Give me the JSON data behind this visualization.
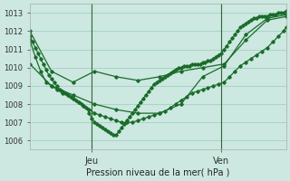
{
  "xlabel": "Pression niveau de la mer( hPa )",
  "bg_color": "#cce8e0",
  "grid_color": "#99ccbb",
  "line_color": "#1a6b2a",
  "ylim": [
    1005.5,
    1013.5
  ],
  "yticks": [
    1006,
    1007,
    1008,
    1009,
    1010,
    1011,
    1012,
    1013
  ],
  "xlim": [
    0,
    95
  ],
  "jeu_x": 23,
  "ven_x": 71,
  "line1_x": [
    0,
    1,
    2,
    3,
    4,
    5,
    6,
    7,
    8,
    9,
    10,
    11,
    12,
    13,
    14,
    15,
    16,
    17,
    18,
    19,
    20,
    21,
    22,
    23,
    24,
    25,
    26,
    27,
    28,
    29,
    30,
    31,
    32,
    33,
    34,
    35,
    36,
    37,
    38,
    39,
    40,
    41,
    42,
    43,
    44,
    45,
    46,
    47,
    48,
    49,
    50,
    51,
    52,
    53,
    54,
    55,
    56,
    57,
    58,
    59,
    60,
    61,
    62,
    63,
    64,
    65,
    66,
    67,
    68,
    69,
    70,
    71,
    72,
    73,
    74,
    75,
    76,
    77,
    78,
    79,
    80,
    81,
    82,
    83,
    84,
    85,
    86,
    87,
    88,
    89,
    90,
    91,
    92,
    93,
    94,
    95
  ],
  "line1_y": [
    1011.7,
    1011.4,
    1011.1,
    1010.8,
    1010.5,
    1010.2,
    1009.9,
    1009.6,
    1009.4,
    1009.2,
    1009.0,
    1008.8,
    1008.7,
    1008.6,
    1008.5,
    1008.4,
    1008.3,
    1008.2,
    1008.1,
    1008.0,
    1007.9,
    1007.8,
    1007.5,
    1007.2,
    1007.0,
    1006.9,
    1006.8,
    1006.7,
    1006.6,
    1006.5,
    1006.4,
    1006.3,
    1006.3,
    1006.5,
    1006.7,
    1006.9,
    1007.1,
    1007.3,
    1007.5,
    1007.7,
    1007.9,
    1008.1,
    1008.3,
    1008.5,
    1008.7,
    1008.9,
    1009.1,
    1009.2,
    1009.3,
    1009.4,
    1009.5,
    1009.6,
    1009.7,
    1009.8,
    1009.9,
    1010.0,
    1010.0,
    1010.1,
    1010.1,
    1010.1,
    1010.2,
    1010.2,
    1010.2,
    1010.2,
    1010.3,
    1010.3,
    1010.4,
    1010.4,
    1010.5,
    1010.6,
    1010.7,
    1010.8,
    1011.0,
    1011.2,
    1011.4,
    1011.6,
    1011.8,
    1012.0,
    1012.2,
    1012.3,
    1012.4,
    1012.5,
    1012.6,
    1012.7,
    1012.7,
    1012.8,
    1012.8,
    1012.8,
    1012.8,
    1012.9,
    1012.9,
    1012.9,
    1013.0,
    1013.0,
    1013.0,
    1013.1
  ],
  "line2_x": [
    0,
    2,
    4,
    6,
    8,
    10,
    12,
    14,
    16,
    18,
    20,
    22,
    24,
    26,
    28,
    30,
    32,
    34,
    36,
    38,
    40,
    42,
    44,
    46,
    48,
    50,
    52,
    54,
    56,
    58,
    60,
    62,
    64,
    66,
    68,
    70,
    72,
    74,
    76,
    78,
    80,
    82,
    84,
    86,
    88,
    90,
    92,
    94,
    95
  ],
  "line2_y": [
    1011.5,
    1010.6,
    1009.8,
    1009.2,
    1009.0,
    1008.8,
    1008.6,
    1008.5,
    1008.3,
    1008.1,
    1007.9,
    1007.7,
    1007.5,
    1007.4,
    1007.3,
    1007.2,
    1007.1,
    1007.0,
    1007.0,
    1007.0,
    1007.1,
    1007.2,
    1007.3,
    1007.4,
    1007.5,
    1007.6,
    1007.8,
    1008.0,
    1008.2,
    1008.4,
    1008.6,
    1008.7,
    1008.8,
    1008.9,
    1009.0,
    1009.1,
    1009.2,
    1009.5,
    1009.8,
    1010.1,
    1010.3,
    1010.5,
    1010.7,
    1010.9,
    1011.1,
    1011.4,
    1011.7,
    1012.0,
    1012.2
  ],
  "line3_x": [
    0,
    8,
    16,
    24,
    32,
    40,
    48,
    56,
    64,
    72,
    80,
    88,
    95
  ],
  "line3_y": [
    1012.0,
    1009.8,
    1009.2,
    1009.8,
    1009.5,
    1009.3,
    1009.5,
    1009.8,
    1010.0,
    1010.2,
    1011.5,
    1012.6,
    1012.8
  ],
  "line4_x": [
    0,
    8,
    16,
    24,
    32,
    40,
    48,
    56,
    64,
    72,
    80,
    88,
    95
  ],
  "line4_y": [
    1010.2,
    1009.0,
    1008.5,
    1008.0,
    1007.7,
    1007.5,
    1007.5,
    1008.0,
    1009.5,
    1010.1,
    1011.8,
    1012.7,
    1012.9
  ]
}
